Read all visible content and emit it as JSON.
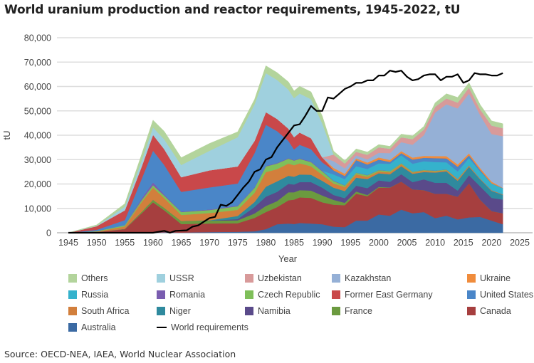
{
  "header": {
    "title": "World uranium production and reactor requirements, 1945-2022, tU"
  },
  "source": "Source: OECD-NEA, IAEA, World Nuclear Association",
  "chart_data": {
    "type": "area",
    "stacked": true,
    "title": "World uranium production and reactor requirements, 1945-2022, tU",
    "xlabel": "Year",
    "ylabel": "tU",
    "xlim": [
      1945,
      2025
    ],
    "ylim": [
      0,
      80000
    ],
    "x_ticks": [
      "1945",
      "1950",
      "1955",
      "1960",
      "1965",
      "1970",
      "1975",
      "1980",
      "1985",
      "1990",
      "1995",
      "2000",
      "2005",
      "2010",
      "2015",
      "2020",
      "2025"
    ],
    "y_ticks": [
      "0",
      "10,000",
      "20,000",
      "30,000",
      "40,000",
      "50,000",
      "60,000",
      "70,000",
      "80,000"
    ],
    "grid": true,
    "legend_position": "bottom",
    "x_years": [
      1945,
      1950,
      1955,
      1958,
      1960,
      1962,
      1965,
      1970,
      1975,
      1978,
      1980,
      1982,
      1984,
      1985,
      1986,
      1988,
      1990,
      1992,
      1994,
      1996,
      1998,
      2000,
      2002,
      2004,
      2006,
      2008,
      2010,
      2012,
      2014,
      2016,
      2018,
      2020,
      2022
    ],
    "series": [
      {
        "name": "Australia",
        "color": "#3b6aa3",
        "values": [
          0,
          0,
          0,
          0,
          0,
          200,
          100,
          300,
          400,
          600,
          1500,
          3500,
          3800,
          3600,
          4000,
          3800,
          3500,
          2500,
          2300,
          5000,
          5000,
          7500,
          7000,
          9500,
          8000,
          8500,
          6000,
          7000,
          5500,
          6300,
          6500,
          5000,
          3500
        ]
      },
      {
        "name": "Canada",
        "color": "#a63f3f",
        "values": [
          0,
          300,
          1500,
          8000,
          12500,
          9000,
          3500,
          3500,
          3500,
          5500,
          7000,
          7000,
          9500,
          10000,
          10500,
          10500,
          9000,
          9000,
          9000,
          11000,
          10000,
          11000,
          11500,
          11500,
          9800,
          9000,
          10000,
          9000,
          9300,
          14000,
          7000,
          3900,
          4500
        ]
      },
      {
        "name": "France",
        "color": "#6b9a3f",
        "values": [
          0,
          0,
          100,
          600,
          1000,
          1000,
          1200,
          1200,
          1200,
          1800,
          2500,
          2500,
          3300,
          3000,
          3000,
          3000,
          2800,
          2000,
          1000,
          900,
          500,
          300,
          100,
          0,
          0,
          0,
          0,
          0,
          0,
          0,
          0,
          0,
          0
        ]
      },
      {
        "name": "Namibia",
        "color": "#5a4a8a",
        "values": [
          0,
          0,
          0,
          0,
          0,
          0,
          0,
          0,
          500,
          2700,
          3800,
          3800,
          3500,
          3200,
          3300,
          3500,
          3200,
          2000,
          1900,
          2400,
          2800,
          2700,
          2300,
          3000,
          3000,
          4400,
          4500,
          4500,
          2500,
          3300,
          5500,
          5400,
          5600
        ]
      },
      {
        "name": "Niger",
        "color": "#2f8a9e",
        "values": [
          0,
          0,
          0,
          0,
          0,
          0,
          0,
          100,
          1300,
          2000,
          4100,
          4300,
          3300,
          3200,
          3100,
          3000,
          2800,
          3000,
          2900,
          3300,
          3700,
          2900,
          3100,
          3300,
          3400,
          3000,
          4200,
          4700,
          4000,
          3500,
          2900,
          2900,
          2000
        ]
      },
      {
        "name": "South Africa",
        "color": "#d27f3c",
        "values": [
          0,
          200,
          1000,
          4000,
          5000,
          4000,
          2500,
          3000,
          2500,
          3800,
          6000,
          5000,
          5000,
          4700,
          4600,
          3500,
          2500,
          1700,
          1700,
          1400,
          1000,
          800,
          800,
          800,
          500,
          600,
          500,
          500,
          600,
          400,
          300,
          300,
          200
        ]
      },
      {
        "name": "Czech Republic",
        "color": "#7fbf5a",
        "values": [
          0,
          200,
          500,
          800,
          1000,
          1000,
          1200,
          1200,
          1500,
          2000,
          2300,
          2300,
          2000,
          1900,
          1800,
          1700,
          1400,
          1000,
          600,
          600,
          600,
          500,
          500,
          400,
          350,
          250,
          250,
          230,
          200,
          150,
          0,
          0,
          0
        ]
      },
      {
        "name": "Romania",
        "color": "#7a5db0",
        "values": [
          0,
          0,
          100,
          800,
          1200,
          600,
          300,
          300,
          300,
          300,
          300,
          300,
          300,
          300,
          300,
          300,
          300,
          200,
          100,
          100,
          100,
          80,
          80,
          80,
          80,
          80,
          80,
          80,
          80,
          0,
          0,
          0,
          0
        ]
      },
      {
        "name": "Russia",
        "color": "#35b2cc",
        "values": [
          0,
          0,
          0,
          0,
          0,
          0,
          0,
          0,
          0,
          0,
          0,
          0,
          0,
          0,
          0,
          0,
          0,
          2500,
          2500,
          2600,
          2500,
          2700,
          2900,
          3200,
          3200,
          3500,
          3500,
          2900,
          3000,
          3000,
          2900,
          2800,
          2500
        ]
      },
      {
        "name": "United States",
        "color": "#4a86c8",
        "values": [
          0,
          500,
          2000,
          8000,
          13000,
          12000,
          8000,
          9000,
          9000,
          14000,
          16800,
          13000,
          7000,
          4300,
          5500,
          5000,
          3400,
          1700,
          1300,
          2500,
          1800,
          1500,
          800,
          900,
          1700,
          1400,
          1600,
          1600,
          1900,
          1100,
          600,
          6,
          30
        ]
      },
      {
        "name": "Former East Germany",
        "color": "#c9484a",
        "values": [
          0,
          1500,
          4000,
          5000,
          6500,
          6500,
          6000,
          7000,
          7000,
          5000,
          5200,
          5000,
          5000,
          5000,
          5000,
          4500,
          2000,
          0,
          0,
          0,
          0,
          0,
          0,
          0,
          0,
          0,
          0,
          0,
          0,
          0,
          0,
          0,
          0
        ]
      },
      {
        "name": "Ukraine",
        "color": "#f08c3c",
        "values": [
          0,
          0,
          0,
          0,
          0,
          0,
          0,
          0,
          0,
          0,
          0,
          0,
          0,
          0,
          0,
          0,
          0,
          1000,
          900,
          700,
          800,
          900,
          800,
          800,
          800,
          800,
          850,
          900,
          950,
          800,
          800,
          700,
          100
        ]
      },
      {
        "name": "Kazakhstan",
        "color": "#95b0d6",
        "values": [
          0,
          0,
          0,
          0,
          0,
          0,
          0,
          0,
          0,
          0,
          0,
          0,
          0,
          0,
          0,
          0,
          0,
          2800,
          2200,
          1200,
          1300,
          1900,
          2800,
          3700,
          5300,
          8500,
          17800,
          21300,
          23000,
          24600,
          21700,
          19500,
          21200
        ]
      },
      {
        "name": "Uzbekistan",
        "color": "#d89a9a",
        "values": [
          0,
          0,
          0,
          0,
          0,
          0,
          0,
          0,
          0,
          0,
          0,
          0,
          0,
          0,
          0,
          0,
          0,
          2700,
          2000,
          1500,
          1900,
          2300,
          1800,
          2000,
          2300,
          2300,
          2400,
          2400,
          2400,
          2400,
          2400,
          3500,
          3300
        ]
      },
      {
        "name": "USSR",
        "color": "#9fd0de",
        "values": [
          0,
          100,
          1500,
          2500,
          3000,
          4000,
          5000,
          8000,
          12000,
          15000,
          16000,
          16000,
          16000,
          16000,
          16000,
          16000,
          14000,
          0,
          0,
          0,
          0,
          0,
          0,
          0,
          0,
          0,
          0,
          0,
          0,
          0,
          0,
          0,
          0
        ]
      },
      {
        "name": "Others",
        "color": "#b3d49c",
        "values": [
          0,
          400,
          1200,
          2500,
          3000,
          3300,
          3000,
          3000,
          2200,
          2000,
          3000,
          3000,
          3200,
          3000,
          3000,
          3000,
          3000,
          1400,
          1200,
          1200,
          1100,
          1100,
          1000,
          1300,
          1300,
          1300,
          1600,
          1900,
          2100,
          2000,
          1900,
          1900,
          1800
        ]
      }
    ],
    "line_series": {
      "name": "World requirements",
      "color": "#000000",
      "x": [
        1945,
        1955,
        1960,
        1962,
        1963,
        1964,
        1966,
        1967,
        1968,
        1969,
        1970,
        1971,
        1972,
        1973,
        1974,
        1975,
        1976,
        1977,
        1978,
        1979,
        1980,
        1981,
        1982,
        1983,
        1984,
        1985,
        1986,
        1987,
        1988,
        1989,
        1990,
        1991,
        1992,
        1993,
        1994,
        1995,
        1996,
        1997,
        1998,
        1999,
        2000,
        2001,
        2002,
        2003,
        2004,
        2005,
        2006,
        2007,
        2008,
        2009,
        2010,
        2011,
        2012,
        2013,
        2014,
        2015,
        2016,
        2017,
        2018,
        2019,
        2020,
        2021,
        2022
      ],
      "values": [
        0,
        0,
        0,
        800,
        0,
        800,
        1000,
        2500,
        3000,
        4500,
        6000,
        6500,
        11500,
        11000,
        12500,
        15500,
        18500,
        21000,
        25000,
        26000,
        30000,
        31000,
        35000,
        38000,
        41000,
        44000,
        44500,
        48000,
        52000,
        50000,
        50000,
        55500,
        55000,
        57000,
        59000,
        60000,
        61500,
        61500,
        62500,
        62500,
        64500,
        64500,
        66500,
        66000,
        66500,
        64000,
        62500,
        63000,
        64500,
        65000,
        65000,
        62500,
        64000,
        64000,
        65000,
        61500,
        62500,
        65500,
        65000,
        65000,
        64500,
        64500,
        65500
      ]
    }
  },
  "legend": [
    {
      "label": "Others",
      "color": "#b3d49c"
    },
    {
      "label": "USSR",
      "color": "#9fd0de"
    },
    {
      "label": "Uzbekistan",
      "color": "#d89a9a"
    },
    {
      "label": "Kazakhstan",
      "color": "#95b0d6"
    },
    {
      "label": "Ukraine",
      "color": "#f08c3c"
    },
    {
      "label": "Russia",
      "color": "#35b2cc"
    },
    {
      "label": "Romania",
      "color": "#7a5db0"
    },
    {
      "label": "Czech Republic",
      "color": "#7fbf5a"
    },
    {
      "label": "Former East Germany",
      "color": "#c9484a"
    },
    {
      "label": "United States",
      "color": "#4a86c8"
    },
    {
      "label": "South Africa",
      "color": "#d27f3c"
    },
    {
      "label": "Niger",
      "color": "#2f8a9e"
    },
    {
      "label": "Namibia",
      "color": "#5a4a8a"
    },
    {
      "label": "France",
      "color": "#6b9a3f"
    },
    {
      "label": "Canada",
      "color": "#a63f3f"
    },
    {
      "label": "Australia",
      "color": "#3b6aa3"
    },
    {
      "label": "World requirements",
      "color": "#000000",
      "line": true
    }
  ]
}
